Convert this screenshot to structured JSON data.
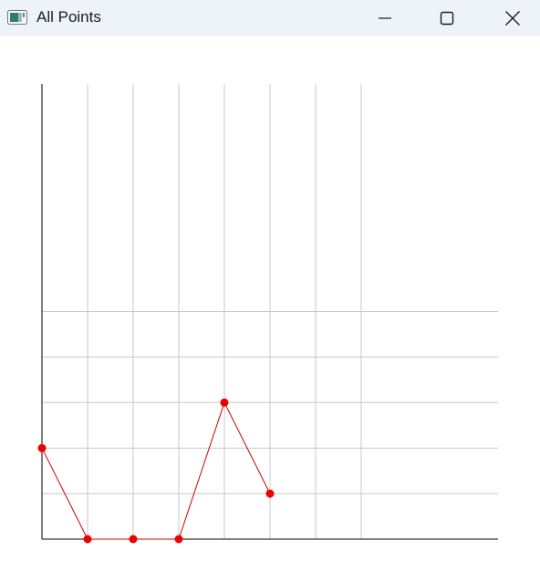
{
  "window": {
    "title": "All Points",
    "icons": {
      "app": "app-window-icon",
      "minimize": "minimize-icon",
      "maximize": "maximize-icon",
      "close": "close-icon"
    }
  },
  "chart_data": {
    "type": "line",
    "title": "",
    "xlabel": "",
    "ylabel": "",
    "grid": true,
    "xlim": [
      0,
      10
    ],
    "ylim": [
      0,
      10
    ],
    "x_gridlines": [
      1,
      2,
      3,
      4,
      5,
      6,
      7
    ],
    "y_gridlines": [
      1,
      2,
      3,
      4,
      5
    ],
    "series": [
      {
        "x": [
          0,
          1,
          2,
          3,
          4,
          5
        ],
        "y": [
          2,
          0,
          0,
          0,
          3,
          1
        ],
        "line_color": "#cc0000",
        "marker_color": "#ee0000"
      }
    ],
    "colors": {
      "grid": "#c8c8c8",
      "axis": "#000000"
    }
  }
}
